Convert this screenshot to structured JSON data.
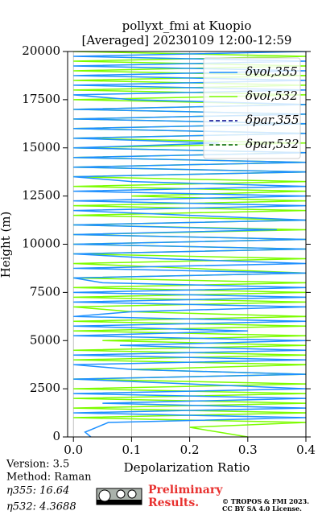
{
  "chart_data": {
    "type": "profile",
    "title": [
      "pollyxt_fmi at Kuopio",
      "[Averaged] 20230109 12:00-12:59"
    ],
    "xlabel": "Depolarization Ratio",
    "ylabel": "Height (m)",
    "xlim": [
      -0.01,
      0.4
    ],
    "ylim": [
      0,
      20000
    ],
    "xticks": [
      {
        "value": 0,
        "label": "0.0"
      },
      0.1,
      0.2,
      0.3,
      0.4
    ],
    "yticks": [
      0,
      2500,
      5000,
      7500,
      10000,
      12500,
      15000,
      17500,
      20000
    ],
    "grid": true,
    "legend": "upper right",
    "y": [
      0,
      250,
      500,
      750,
      1000,
      1250,
      1500,
      1750,
      2000,
      2250,
      2500,
      2750,
      3000,
      3250,
      3500,
      3750,
      4000,
      4250,
      4500,
      4750,
      5000,
      5250,
      5500,
      5750,
      6000,
      6250,
      6500,
      6750,
      7000,
      7250,
      7500,
      7750,
      8000,
      8250,
      8500,
      8750,
      9000,
      9250,
      9500,
      9750,
      10000,
      10250,
      10500,
      10750,
      11000,
      11250,
      11500,
      11750,
      12000,
      12250,
      12500,
      12750,
      13000,
      13250,
      13500,
      13750,
      14000,
      14250,
      14500,
      14750,
      15000,
      15250,
      15500,
      15750,
      16000,
      16250,
      16500,
      16750,
      17000,
      17250,
      17500,
      17750,
      18000,
      18250,
      18500,
      18750,
      19000,
      19250,
      19500,
      19750,
      20000
    ],
    "series": [
      {
        "name": "δvol,355",
        "color": "#1e90ff",
        "linestyle": "solid",
        "values": [
          0.03,
          0.02,
          0.04,
          0.06,
          0.4,
          0.0,
          0.4,
          0.05,
          0.4,
          0.0,
          0.4,
          0.2,
          0.0,
          0.4,
          0.1,
          0.0,
          0.4,
          0.0,
          0.4,
          0.08,
          0.4,
          0.0,
          0.3,
          0.0,
          0.4,
          0.0,
          0.1,
          0.4,
          0.0,
          0.4,
          0.0,
          0.4,
          0.05,
          0.0,
          0.4,
          0.0,
          0.4,
          0.15,
          0.0,
          0.4,
          0.0,
          0.4,
          0.0,
          0.35,
          0.0,
          0.4,
          0.2,
          0.0,
          0.4,
          0.0,
          0.4,
          0.0,
          0.4,
          0.1,
          0.0,
          0.4,
          0.0,
          0.4,
          0.0,
          0.4,
          0.0,
          0.25,
          0.0,
          0.4,
          0.0,
          0.4,
          0.0,
          0.4,
          0.0,
          0.4,
          0.1,
          0.0,
          0.4,
          0.0,
          0.4,
          0.0,
          0.4,
          0.0,
          0.4,
          0.0,
          0.4
        ]
      },
      {
        "name": "δvol,532",
        "color": "#7cfc00",
        "linestyle": "solid",
        "values": [
          0.3,
          0.25,
          0.2,
          0.4,
          0.0,
          0.4,
          0.0,
          0.4,
          0.0,
          0.4,
          0.0,
          0.4,
          0.0,
          0.4,
          0.1,
          0.4,
          0.0,
          0.4,
          0.0,
          0.4,
          0.05,
          0.4,
          0.0,
          0.4,
          0.0,
          0.4,
          0.1,
          0.0,
          0.4,
          0.0,
          0.4,
          0.0,
          0.4,
          0.0,
          0.4,
          0.2,
          0.0,
          0.4,
          0.0,
          0.4,
          0.0,
          0.4,
          0.0,
          0.4,
          0.0,
          0.4,
          0.0,
          0.4,
          0.0,
          0.4,
          0.1,
          0.4,
          0.0,
          0.4,
          0.0,
          0.4,
          0.0,
          0.4,
          0.0,
          0.4,
          0.0,
          0.4,
          0.0,
          0.4,
          0.0,
          0.4,
          0.0,
          0.4,
          0.0,
          0.4,
          0.0,
          0.4,
          0.0,
          0.4,
          0.0,
          0.4,
          0.0,
          0.4,
          0.0,
          0.4,
          0.0
        ]
      },
      {
        "name": "δpar,355",
        "color": "#00008b",
        "linestyle": "dashed",
        "values": [
          null,
          null,
          null,
          null,
          null,
          null,
          null,
          null,
          null,
          null,
          null,
          null,
          null,
          null,
          null,
          null,
          null,
          null,
          null,
          null,
          null,
          null,
          null,
          null,
          null,
          null,
          null,
          null,
          null,
          null,
          null,
          null,
          null,
          null,
          null,
          null,
          null,
          null,
          null,
          null,
          null,
          null,
          null,
          null,
          null,
          null,
          null,
          null,
          null,
          null,
          null,
          null,
          null,
          null,
          null,
          null,
          null,
          null,
          null,
          null,
          null,
          null,
          null,
          null,
          null,
          null,
          null,
          null,
          null,
          null,
          null,
          null,
          null,
          null,
          null,
          null,
          null,
          null,
          null,
          null,
          null
        ]
      },
      {
        "name": "δpar,532",
        "color": "#006400",
        "linestyle": "dashed",
        "values": [
          null,
          null,
          null,
          null,
          null,
          null,
          null,
          null,
          null,
          null,
          null,
          null,
          null,
          null,
          null,
          null,
          null,
          null,
          null,
          null,
          null,
          null,
          null,
          null,
          null,
          null,
          null,
          null,
          null,
          null,
          null,
          null,
          null,
          null,
          null,
          null,
          null,
          null,
          null,
          null,
          null,
          null,
          null,
          null,
          null,
          null,
          null,
          null,
          null,
          null,
          null,
          null,
          null,
          null,
          null,
          null,
          null,
          null,
          null,
          null,
          null,
          null,
          null,
          null,
          null,
          null,
          null,
          null,
          null,
          null,
          null,
          null,
          null,
          null,
          null,
          null,
          null,
          null,
          null,
          null,
          null
        ]
      }
    ]
  },
  "info": {
    "version": "Version: 3.5",
    "method": "Method: Raman",
    "eta355": "η355:  16.64",
    "eta532": "η532: 4.3688",
    "preliminary": [
      "Preliminary",
      "Results."
    ],
    "copyright": [
      "© TROPOS & FMI 2023.",
      "CC BY SA 4.0 License."
    ]
  }
}
